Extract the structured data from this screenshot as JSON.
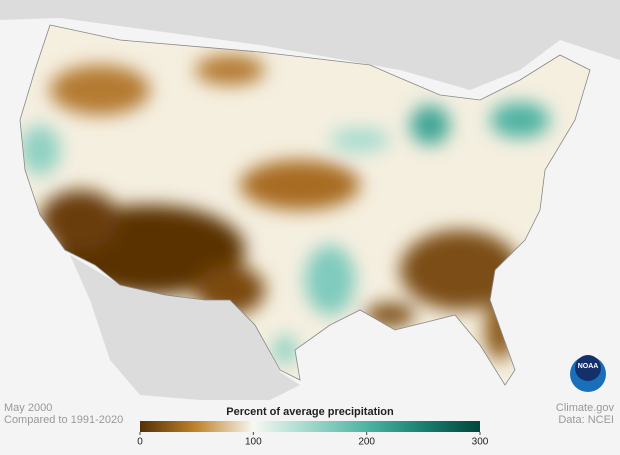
{
  "map": {
    "date": "May 2000",
    "baseline": "Compared to 1991-2020",
    "credit": "Climate.gov",
    "source": "Data: NCEI",
    "logo": "NOAA"
  },
  "legend": {
    "title": "Percent of average precipitation",
    "lim": [
      0,
      300
    ],
    "ticks": [
      0,
      100,
      200,
      300
    ],
    "colors": [
      "#543005",
      "#c0852d",
      "#f7f7f2",
      "#9fd8ca",
      "#4fb3a3",
      "#1a7e70",
      "#01463c"
    ]
  }
}
